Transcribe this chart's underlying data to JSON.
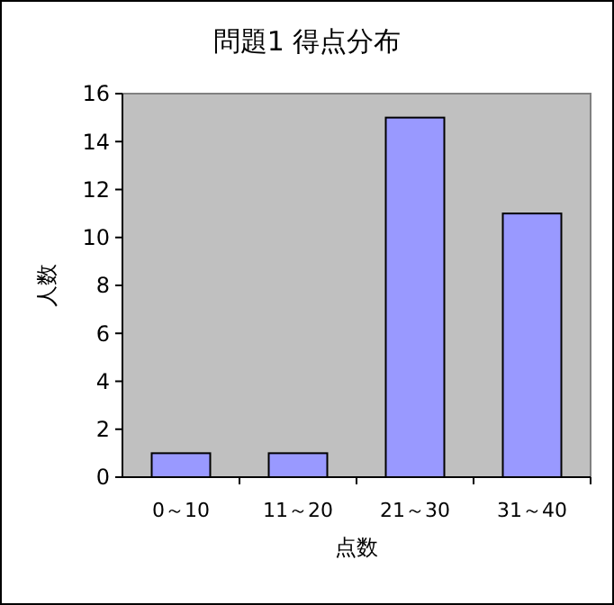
{
  "chart_data": {
    "type": "bar",
    "title": "問題1 得点分布",
    "xlabel": "点数",
    "ylabel": "人数",
    "categories": [
      "0～10",
      "11～20",
      "21～30",
      "31～40"
    ],
    "values": [
      1,
      1,
      15,
      11
    ],
    "color": "#9999ff",
    "ylim": [
      0,
      16
    ],
    "yticks": [
      0,
      2,
      4,
      6,
      8,
      10,
      12,
      14,
      16
    ],
    "grid": false
  }
}
